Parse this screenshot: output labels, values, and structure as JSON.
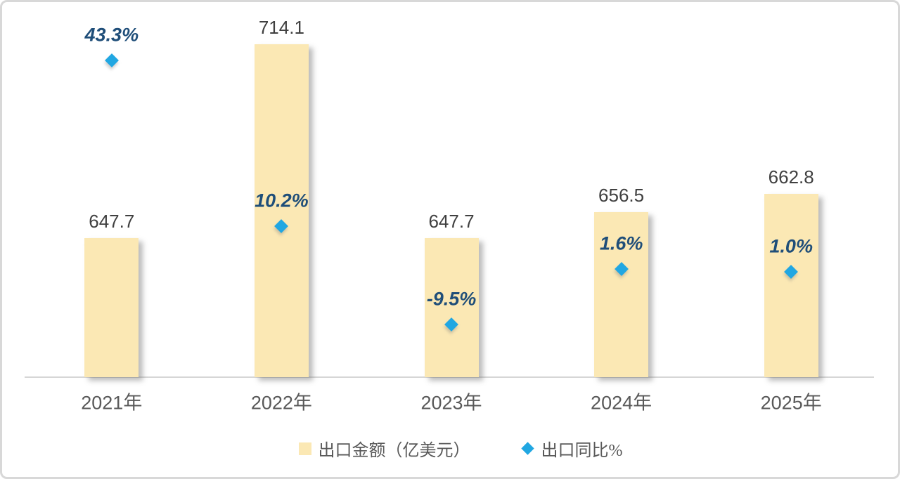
{
  "chart_data": {
    "type": "bar",
    "title": "",
    "xlabel": "",
    "ylabel": "",
    "categories": [
      "2021年",
      "2022年",
      "2023年",
      "2024年",
      "2025年"
    ],
    "series": [
      {
        "name": "出口金额（亿美元）",
        "type": "bar",
        "axis": "primary",
        "values": [
          647.7,
          714.1,
          647.7,
          656.5,
          662.8
        ],
        "labels": [
          "647.7",
          "714.1",
          "647.7",
          "656.5",
          "662.8"
        ]
      },
      {
        "name": "出口同比%",
        "type": "scatter",
        "marker": "diamond",
        "axis": "secondary",
        "values": [
          43.3,
          10.2,
          -9.5,
          1.6,
          1.0
        ],
        "labels": [
          "43.3%",
          "10.2%",
          "-9.5%",
          "1.6%",
          "1.0%"
        ]
      }
    ],
    "primary_ylim": [
      600,
      720
    ],
    "secondary_ylim": [
      -20,
      50
    ],
    "grid": false,
    "legend_position": "bottom",
    "colors": {
      "bar_fill": "#FBE8B4",
      "marker_fill": "#21A7E2",
      "bar_label": "#404040",
      "marker_label": "#1F4E79",
      "axis_label": "#595959",
      "axis_line": "#D6D6D6"
    }
  }
}
